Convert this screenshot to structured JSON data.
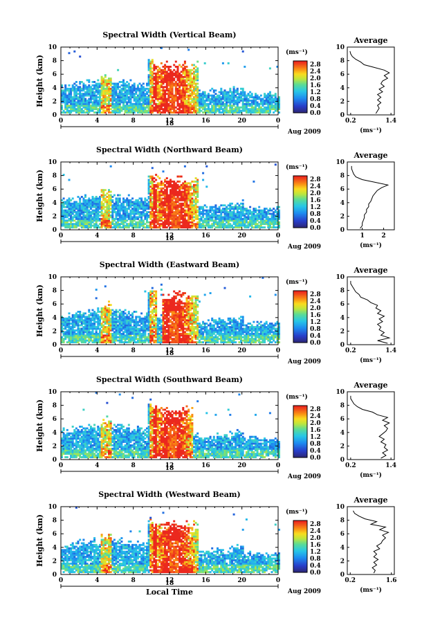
{
  "chart_data": [
    {
      "type": "heatmap",
      "title": "Spectral Width (Vertical Beam)",
      "ylabel": "Height (km)",
      "xlim": [
        0,
        24
      ],
      "ylim": [
        0,
        10
      ],
      "xticks": [
        "0",
        "4",
        "8",
        "12",
        "16",
        "20",
        "0"
      ],
      "yticks": [
        "0",
        "2",
        "4",
        "6",
        "8",
        "10"
      ],
      "date_day": "18",
      "date_month": "Aug 2009",
      "colorbar": {
        "label": "(ms⁻¹)",
        "ticks": [
          "0.0",
          "0.4",
          "0.8",
          "1.2",
          "1.6",
          "2.0",
          "2.4",
          "2.8"
        ],
        "range": [
          0,
          3.0
        ]
      },
      "average": {
        "title": "Average",
        "unit": "(ms⁻¹)",
        "xticks": [
          "0.2",
          "1.4"
        ],
        "xlim": [
          0.1,
          1.5
        ],
        "profile": [
          [
            0.95,
            0.2
          ],
          [
            1.0,
            0.6
          ],
          [
            1.05,
            1.0
          ],
          [
            1.0,
            1.4
          ],
          [
            1.1,
            1.8
          ],
          [
            1.0,
            2.2
          ],
          [
            1.1,
            2.6
          ],
          [
            1.0,
            3.0
          ],
          [
            1.15,
            3.4
          ],
          [
            1.05,
            3.8
          ],
          [
            1.2,
            4.2
          ],
          [
            1.1,
            4.6
          ],
          [
            1.15,
            5.0
          ],
          [
            1.3,
            5.4
          ],
          [
            1.2,
            5.8
          ],
          [
            1.35,
            6.2
          ],
          [
            1.2,
            6.6
          ],
          [
            0.9,
            7.0
          ],
          [
            0.6,
            7.4
          ],
          [
            0.5,
            7.8
          ],
          [
            0.35,
            8.2
          ],
          [
            0.25,
            8.6
          ],
          [
            0.2,
            9.0
          ],
          [
            0.18,
            9.4
          ]
        ]
      },
      "convection": {
        "start": 10,
        "end": 15,
        "core": 12.2
      }
    },
    {
      "type": "heatmap",
      "title": "Spectral Width (Northward Beam)",
      "ylabel": "Height (km)",
      "xlim": [
        0,
        24
      ],
      "ylim": [
        0,
        10
      ],
      "xticks": [
        "0",
        "4",
        "8",
        "12",
        "16",
        "20",
        "0"
      ],
      "yticks": [
        "0",
        "2",
        "4",
        "6",
        "8",
        "10"
      ],
      "date_day": "18",
      "date_month": "Aug 2009",
      "colorbar": {
        "label": "(ms⁻¹)",
        "ticks": [
          "0.0",
          "0.4",
          "0.8",
          "1.2",
          "1.6",
          "2.0",
          "2.4",
          "2.8"
        ],
        "range": [
          0,
          3.0
        ]
      },
      "average": {
        "title": "Average",
        "unit": "(ms⁻¹)",
        "xticks": [
          "1",
          "2"
        ],
        "xlim": [
          0.3,
          2.5
        ],
        "profile": [
          [
            0.9,
            0.2
          ],
          [
            1.0,
            0.6
          ],
          [
            1.0,
            1.0
          ],
          [
            1.05,
            1.4
          ],
          [
            1.1,
            1.8
          ],
          [
            1.1,
            2.2
          ],
          [
            1.2,
            2.6
          ],
          [
            1.2,
            3.0
          ],
          [
            1.3,
            3.4
          ],
          [
            1.3,
            3.8
          ],
          [
            1.4,
            4.2
          ],
          [
            1.45,
            4.6
          ],
          [
            1.5,
            5.0
          ],
          [
            1.6,
            5.4
          ],
          [
            1.7,
            5.8
          ],
          [
            1.9,
            6.2
          ],
          [
            2.2,
            6.6
          ],
          [
            1.6,
            7.0
          ],
          [
            1.0,
            7.4
          ],
          [
            0.7,
            7.8
          ],
          [
            0.6,
            8.2
          ],
          [
            0.55,
            8.6
          ],
          [
            0.5,
            9.0
          ],
          [
            0.5,
            9.4
          ]
        ]
      },
      "convection": {
        "start": 10,
        "end": 15,
        "core": 12.5
      }
    },
    {
      "type": "heatmap",
      "title": "Spectral Width (Eastward Beam)",
      "ylabel": "Height (km)",
      "xlim": [
        0,
        24
      ],
      "ylim": [
        0,
        10
      ],
      "xticks": [
        "0",
        "4",
        "8",
        "12",
        "16",
        "20",
        "0"
      ],
      "yticks": [
        "0",
        "2",
        "4",
        "6",
        "8",
        "10"
      ],
      "date_day": "18",
      "date_month": "Aug 2009",
      "colorbar": {
        "label": "(ms⁻¹)",
        "ticks": [
          "0.0",
          "0.4",
          "0.8",
          "1.2",
          "1.6",
          "2.0",
          "2.4",
          "2.8"
        ],
        "range": [
          0,
          3.0
        ]
      },
      "average": {
        "title": "Average",
        "unit": "(ms⁻¹)",
        "xticks": [
          "0.2",
          "1.4"
        ],
        "xlim": [
          0.1,
          1.5
        ],
        "profile": [
          [
            1.3,
            0.2
          ],
          [
            1.0,
            0.6
          ],
          [
            1.35,
            1.0
          ],
          [
            1.1,
            1.4
          ],
          [
            1.2,
            1.8
          ],
          [
            1.05,
            2.2
          ],
          [
            1.1,
            2.6
          ],
          [
            1.0,
            3.0
          ],
          [
            1.15,
            3.4
          ],
          [
            1.05,
            3.8
          ],
          [
            1.2,
            4.2
          ],
          [
            1.0,
            4.6
          ],
          [
            1.1,
            5.0
          ],
          [
            0.95,
            5.4
          ],
          [
            1.0,
            5.8
          ],
          [
            0.8,
            6.2
          ],
          [
            0.7,
            6.6
          ],
          [
            0.5,
            7.0
          ],
          [
            0.45,
            7.4
          ],
          [
            0.35,
            7.8
          ],
          [
            0.3,
            8.2
          ],
          [
            0.25,
            8.6
          ],
          [
            0.2,
            9.0
          ],
          [
            0.2,
            9.4
          ]
        ]
      },
      "convection": {
        "start": 11,
        "end": 15,
        "core": 12.3
      }
    },
    {
      "type": "heatmap",
      "title": "Spectral Width (Southward Beam)",
      "ylabel": "Height (km)",
      "xlim": [
        0,
        24
      ],
      "ylim": [
        0,
        10
      ],
      "xticks": [
        "0",
        "4",
        "8",
        "12",
        "16",
        "20",
        "0"
      ],
      "yticks": [
        "0",
        "2",
        "4",
        "6",
        "8",
        "10"
      ],
      "date_day": "18",
      "date_month": "Aug 2009",
      "colorbar": {
        "label": "(ms⁻¹)",
        "ticks": [
          "0.0",
          "0.4",
          "0.8",
          "1.2",
          "1.6",
          "2.0",
          "2.4",
          "2.8"
        ],
        "range": [
          0,
          3.0
        ]
      },
      "average": {
        "title": "Average",
        "unit": "(ms⁻¹)",
        "xticks": [
          "0.2",
          "1.4"
        ],
        "xlim": [
          0.1,
          1.5
        ],
        "profile": [
          [
            1.1,
            0.2
          ],
          [
            1.25,
            0.6
          ],
          [
            1.15,
            1.0
          ],
          [
            1.3,
            1.4
          ],
          [
            1.2,
            1.8
          ],
          [
            1.25,
            2.2
          ],
          [
            1.1,
            2.6
          ],
          [
            1.2,
            3.0
          ],
          [
            1.05,
            3.4
          ],
          [
            1.15,
            3.8
          ],
          [
            1.25,
            4.2
          ],
          [
            1.3,
            4.6
          ],
          [
            1.2,
            5.0
          ],
          [
            1.35,
            5.4
          ],
          [
            1.15,
            5.8
          ],
          [
            1.3,
            6.2
          ],
          [
            1.0,
            6.6
          ],
          [
            0.85,
            7.0
          ],
          [
            0.55,
            7.4
          ],
          [
            0.4,
            7.8
          ],
          [
            0.3,
            8.2
          ],
          [
            0.25,
            8.6
          ],
          [
            0.2,
            9.0
          ],
          [
            0.2,
            9.4
          ]
        ]
      },
      "convection": {
        "start": 10,
        "end": 14.5,
        "core": 12.2
      }
    },
    {
      "type": "heatmap",
      "title": "Spectral Width (Westward Beam)",
      "ylabel": "Height (km)",
      "xlim": [
        0,
        24
      ],
      "ylim": [
        0,
        10
      ],
      "xticks": [
        "0",
        "4",
        "8",
        "12",
        "16",
        "20",
        "0"
      ],
      "yticks": [
        "0",
        "2",
        "4",
        "6",
        "8",
        "10"
      ],
      "date_day": "18",
      "date_month": "Aug 2009",
      "xlabel": "Local Time",
      "colorbar": {
        "label": "(ms⁻¹)",
        "ticks": [
          "0.0",
          "0.4",
          "0.8",
          "1.2",
          "1.6",
          "2.0",
          "2.4",
          "2.8"
        ],
        "range": [
          0,
          3.0
        ]
      },
      "average": {
        "title": "Average",
        "unit": "(ms⁻¹)",
        "xticks": [
          "0.2",
          "1.6"
        ],
        "xlim": [
          0.1,
          1.7
        ],
        "profile": [
          [
            1.0,
            0.2
          ],
          [
            1.05,
            0.6
          ],
          [
            0.95,
            1.0
          ],
          [
            1.1,
            1.4
          ],
          [
            1.0,
            1.8
          ],
          [
            1.15,
            2.2
          ],
          [
            1.0,
            2.6
          ],
          [
            1.1,
            3.0
          ],
          [
            1.0,
            3.4
          ],
          [
            1.2,
            3.8
          ],
          [
            1.1,
            4.2
          ],
          [
            1.25,
            4.6
          ],
          [
            1.3,
            5.0
          ],
          [
            1.4,
            5.4
          ],
          [
            1.3,
            5.8
          ],
          [
            1.5,
            6.2
          ],
          [
            1.2,
            6.6
          ],
          [
            1.4,
            7.0
          ],
          [
            0.9,
            7.4
          ],
          [
            1.1,
            7.8
          ],
          [
            0.7,
            8.2
          ],
          [
            0.5,
            8.6
          ],
          [
            0.35,
            9.0
          ],
          [
            0.3,
            9.4
          ]
        ]
      },
      "convection": {
        "start": 10,
        "end": 15,
        "core": 12.4
      }
    }
  ]
}
